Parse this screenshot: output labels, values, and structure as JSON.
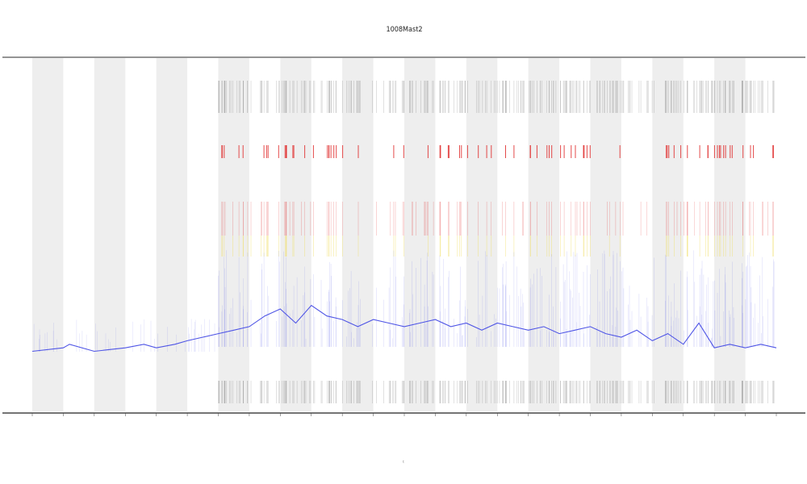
{
  "chart_data": {
    "type": "line",
    "title": "1008Mast2",
    "subtitle": "",
    "xlabel": "t",
    "ylabel": "",
    "legend_text": "",
    "left_annotation": "",
    "xlim": [
      0,
      24
    ],
    "ylim": [
      0,
      1
    ],
    "grid": false,
    "shaded_bands": [
      [
        0,
        1
      ],
      [
        2,
        3
      ],
      [
        4,
        5
      ],
      [
        6,
        7
      ],
      [
        8,
        9
      ],
      [
        10,
        11
      ],
      [
        12,
        13
      ],
      [
        14,
        15
      ],
      [
        16,
        17
      ],
      [
        18,
        19
      ],
      [
        20,
        21
      ],
      [
        22,
        23
      ]
    ],
    "x_ticks": [
      "",
      "",
      "",
      "",
      "",
      "",
      "",
      "",
      "",
      "",
      "",
      "",
      "",
      "",
      "",
      "",
      "",
      "",
      "",
      "",
      "",
      "",
      "",
      "",
      ""
    ],
    "series": [
      {
        "color": "#4f55e6",
        "x": [
          0,
          1,
          1.2,
          2,
          3,
          3.6,
          4,
          4.6,
          5,
          5.5,
          6,
          6.5,
          7,
          7.5,
          8,
          8.5,
          9,
          9.5,
          10,
          10.5,
          11,
          11.5,
          12,
          12.5,
          13,
          13.5,
          14,
          14.5,
          15,
          15.5,
          16,
          16.5,
          17,
          17.5,
          18,
          18.5,
          19,
          19.5,
          20,
          20.5,
          21,
          21.5,
          22,
          22.5,
          23,
          23.5,
          24
        ],
        "y": [
          0.17,
          0.18,
          0.19,
          0.17,
          0.18,
          0.19,
          0.18,
          0.19,
          0.2,
          0.21,
          0.22,
          0.23,
          0.24,
          0.27,
          0.29,
          0.25,
          0.3,
          0.27,
          0.26,
          0.24,
          0.26,
          0.25,
          0.24,
          0.25,
          0.26,
          0.24,
          0.25,
          0.23,
          0.25,
          0.24,
          0.23,
          0.24,
          0.22,
          0.23,
          0.24,
          0.22,
          0.21,
          0.23,
          0.2,
          0.22,
          0.19,
          0.25,
          0.18,
          0.19,
          0.18,
          0.19,
          0.18
        ]
      }
    ],
    "colors": {
      "series": "#4f55e6",
      "band": "#e8e8e8",
      "high_marks": "#e02a2a",
      "mid_marks": "#f0dc5a",
      "tick_marks": "#555555"
    }
  }
}
